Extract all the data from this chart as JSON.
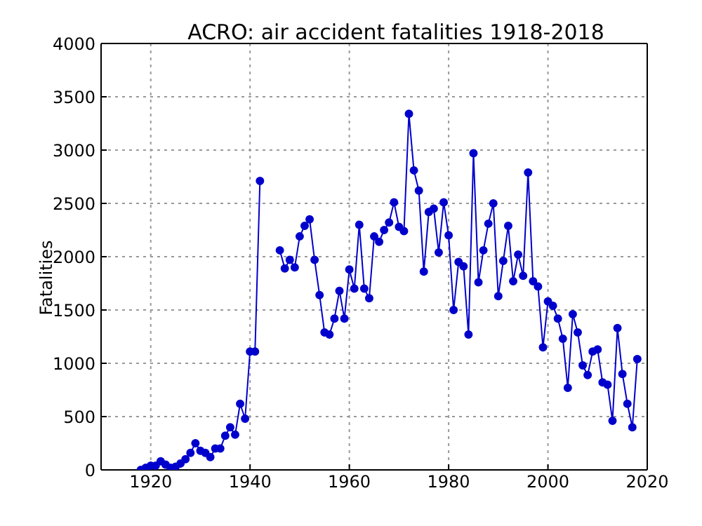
{
  "chart_data": {
    "type": "line",
    "title": "ACRO: air accident fatalities 1918-2018",
    "ylabel": "Fatalities",
    "x": [
      1918,
      1919,
      1920,
      1921,
      1922,
      1923,
      1924,
      1925,
      1926,
      1927,
      1928,
      1929,
      1930,
      1931,
      1932,
      1933,
      1934,
      1935,
      1936,
      1937,
      1938,
      1939,
      1940,
      1941,
      1942,
      1943,
      1944,
      1945,
      1946,
      1947,
      1948,
      1949,
      1950,
      1951,
      1952,
      1953,
      1954,
      1955,
      1956,
      1957,
      1958,
      1959,
      1960,
      1961,
      1962,
      1963,
      1964,
      1965,
      1966,
      1967,
      1968,
      1969,
      1970,
      1971,
      1972,
      1973,
      1974,
      1975,
      1976,
      1977,
      1978,
      1979,
      1980,
      1981,
      1982,
      1983,
      1984,
      1985,
      1986,
      1987,
      1988,
      1989,
      1990,
      1991,
      1992,
      1993,
      1994,
      1995,
      1996,
      1997,
      1998,
      1999,
      2000,
      2001,
      2002,
      2003,
      2004,
      2005,
      2006,
      2007,
      2008,
      2009,
      2010,
      2011,
      2012,
      2013,
      2014,
      2015,
      2016,
      2017,
      2018
    ],
    "series": [
      {
        "color": "#0000cc",
        "values": [
          0,
          20,
          40,
          40,
          80,
          50,
          20,
          30,
          60,
          100,
          160,
          250,
          180,
          160,
          120,
          200,
          200,
          320,
          400,
          330,
          620,
          480,
          1110,
          1110,
          2710,
          null,
          null,
          null,
          2060,
          1890,
          1970,
          1900,
          2190,
          2290,
          2350,
          1970,
          1640,
          1290,
          1270,
          1420,
          1680,
          1420,
          1880,
          1700,
          2300,
          1700,
          1610,
          2190,
          2140,
          2250,
          2320,
          2510,
          2280,
          2240,
          3340,
          2810,
          2620,
          1860,
          2420,
          2450,
          2040,
          2510,
          2200,
          1500,
          1950,
          1910,
          1270,
          2970,
          1760,
          2060,
          2310,
          2500,
          1630,
          1960,
          2290,
          1770,
          2020,
          1820,
          2790,
          1770,
          1720,
          1150,
          1580,
          1540,
          1420,
          1230,
          770,
          1460,
          1290,
          980,
          890,
          1110,
          1130,
          820,
          800,
          460,
          1330,
          900,
          620,
          400,
          1040
        ]
      }
    ],
    "xlim": [
      1910,
      2020
    ],
    "xticks": [
      1920,
      1940,
      1960,
      1980,
      2000,
      2020
    ],
    "ylim": [
      0,
      4000
    ],
    "yticks": [
      0,
      500,
      1000,
      1500,
      2000,
      2500,
      3000,
      3500,
      4000
    ],
    "grid": true,
    "marker": "circle",
    "line_style": "solid",
    "legend": false
  }
}
